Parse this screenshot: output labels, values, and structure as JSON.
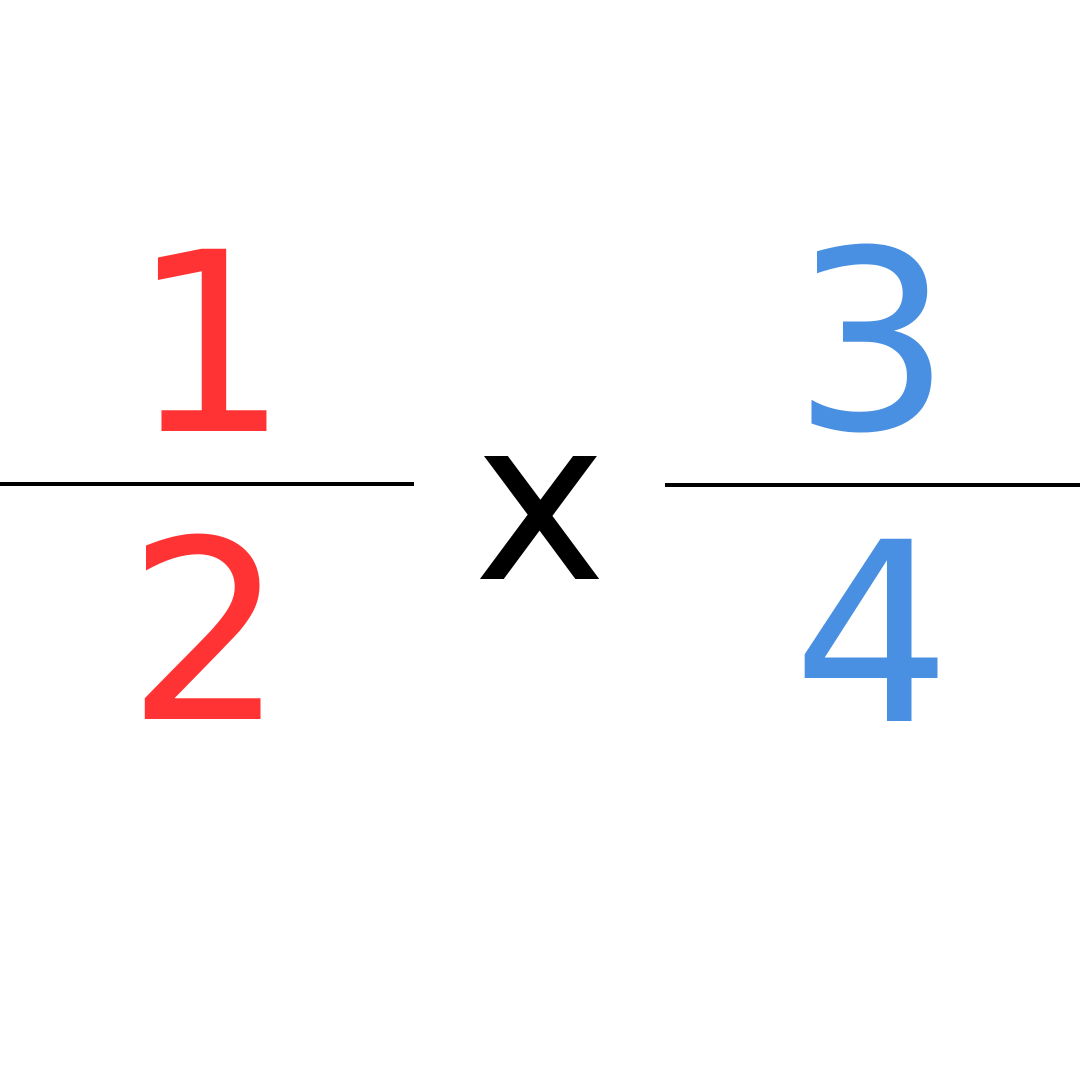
{
  "equation": {
    "left_fraction": {
      "numerator": "1",
      "denominator": "2",
      "color": "#ff3333"
    },
    "operator": "x",
    "right_fraction": {
      "numerator": "3",
      "denominator": "4",
      "color": "#4a90e2"
    },
    "line_color": "#000000"
  }
}
